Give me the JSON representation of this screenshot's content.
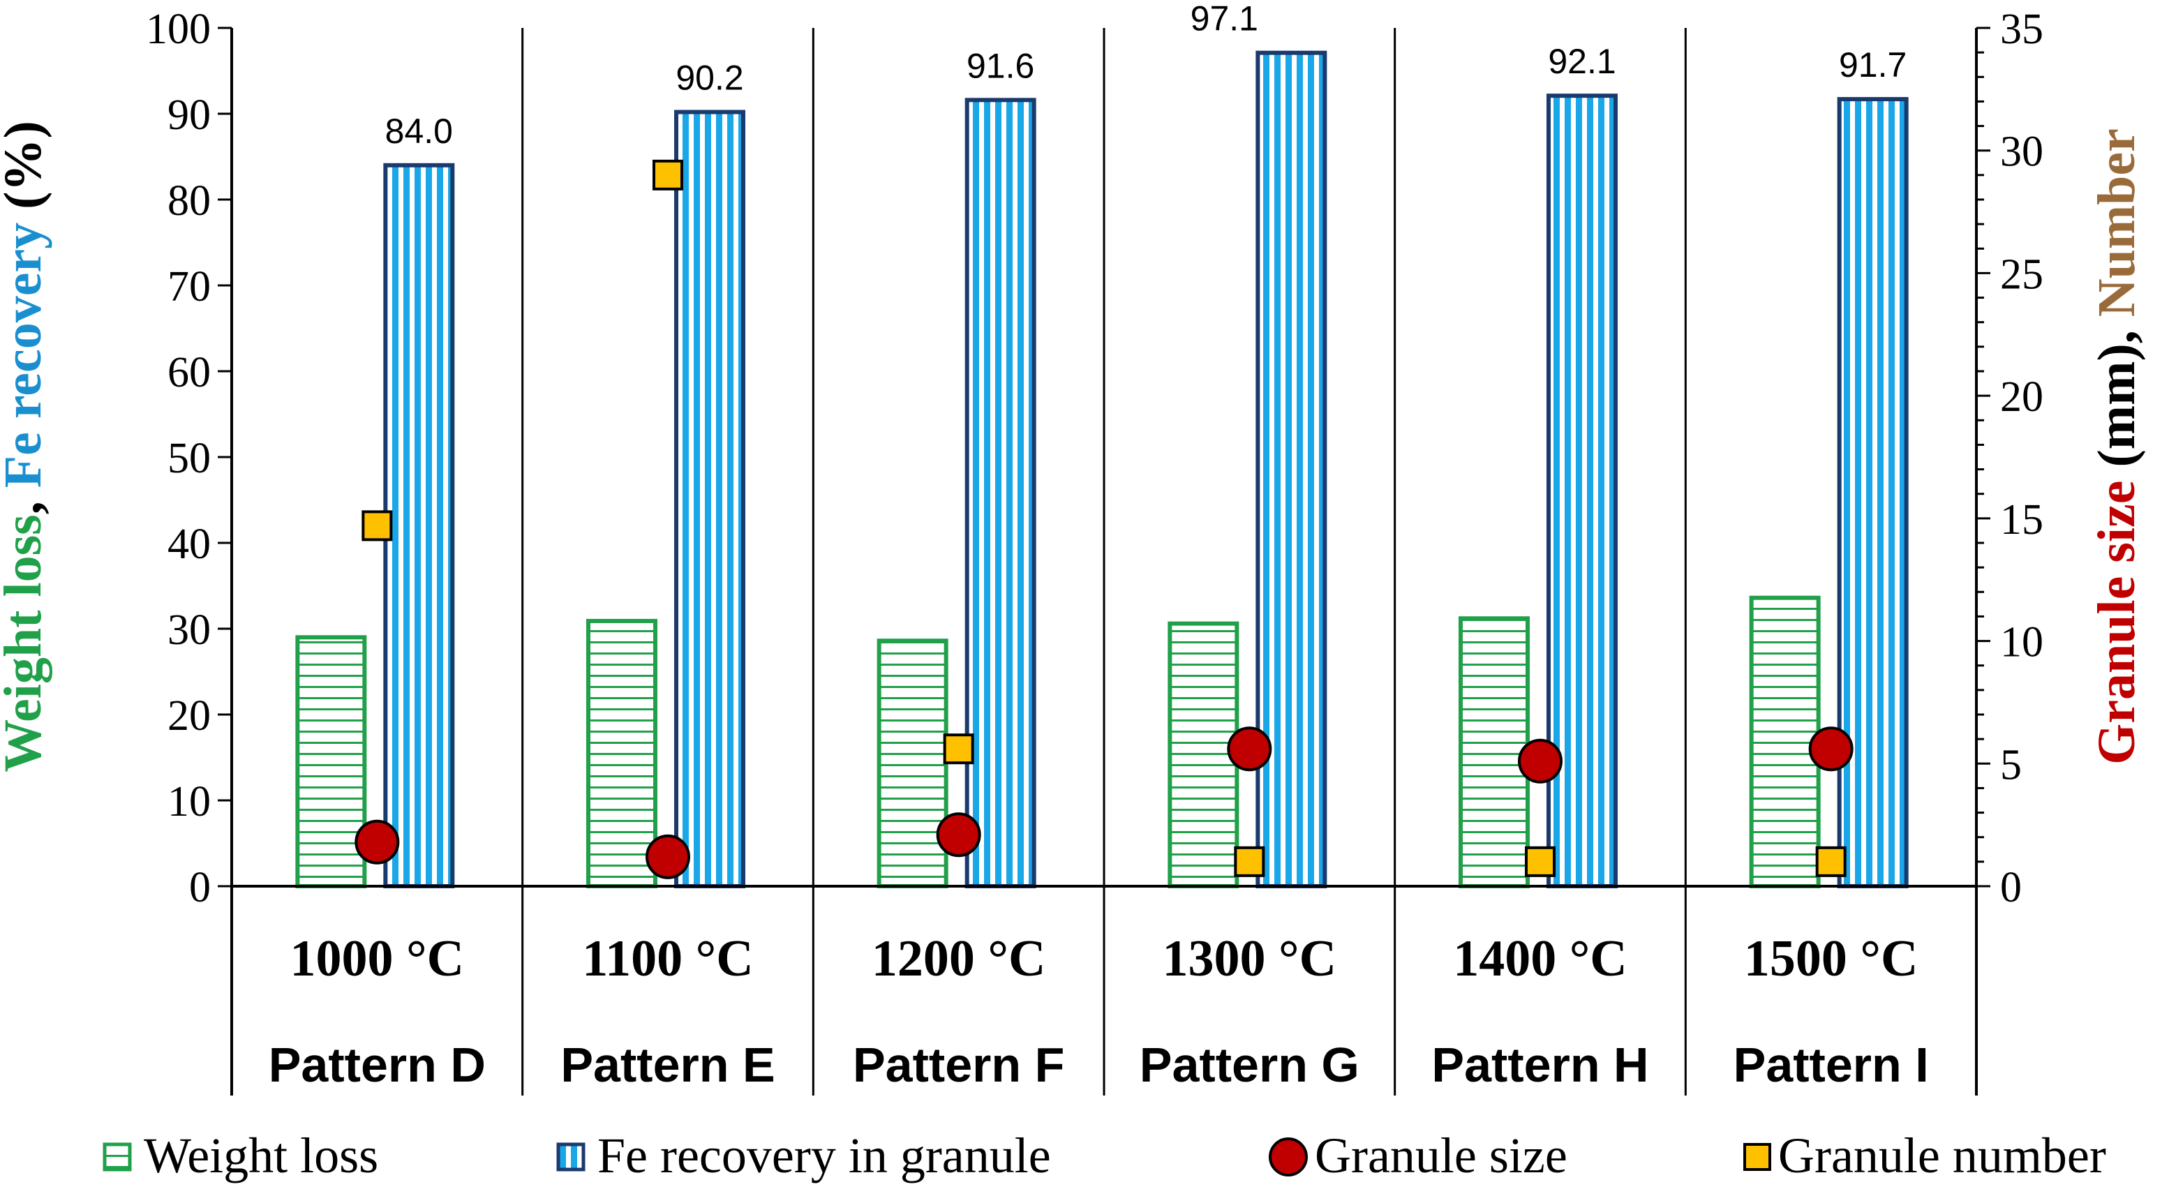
{
  "chart_data": {
    "type": "bar",
    "categories": [
      {
        "temperature": "1000 °C",
        "pattern": "Pattern D"
      },
      {
        "temperature": "1100 °C",
        "pattern": "Pattern E"
      },
      {
        "temperature": "1200 °C",
        "pattern": "Pattern F"
      },
      {
        "temperature": "1300 °C",
        "pattern": "Pattern G"
      },
      {
        "temperature": "1400 °C",
        "pattern": "Pattern H"
      },
      {
        "temperature": "1500 °C",
        "pattern": "Pattern I"
      }
    ],
    "series": [
      {
        "name": "Weight loss",
        "axis": "left",
        "kind": "bar",
        "color": "#21a04a",
        "hatch": "horizontal",
        "values": [
          29.0,
          30.9,
          28.6,
          30.6,
          31.2,
          33.6
        ]
      },
      {
        "name": "Fe recovery in granule",
        "axis": "left",
        "kind": "bar",
        "color": "#1a3a6e",
        "fill": "#19a7e8",
        "hatch": "vertical",
        "values": [
          84.0,
          90.2,
          91.6,
          97.1,
          92.1,
          91.7
        ],
        "labels": [
          "84.0",
          "90.2",
          "91.6",
          "97.1",
          "92.1",
          "91.7"
        ]
      },
      {
        "name": "Granule size",
        "axis": "right",
        "kind": "marker",
        "marker": "circle",
        "color": "#c00000",
        "values": [
          1.8,
          1.2,
          2.1,
          5.6,
          5.1,
          5.6
        ]
      },
      {
        "name": "Granule number",
        "axis": "right",
        "kind": "marker",
        "marker": "square",
        "color": "#ffc000",
        "values": [
          14.7,
          29.0,
          5.6,
          1.0,
          1.0,
          1.0
        ]
      }
    ],
    "y_left": {
      "range": [
        0,
        100
      ],
      "ticks": [
        0,
        10,
        20,
        30,
        40,
        50,
        60,
        70,
        80,
        90,
        100
      ],
      "tick_labels": [
        "0",
        "10",
        "20",
        "30",
        "40",
        "50",
        "60",
        "70",
        "80",
        "90",
        "100"
      ],
      "label_parts": [
        {
          "text": "Weight loss",
          "color": "#21a04a"
        },
        {
          "text": ", ",
          "color": "#000000"
        },
        {
          "text": "Fe recovery",
          "color": "#1a8fd0"
        },
        {
          "text": " (%)",
          "color": "#000000"
        }
      ]
    },
    "y_right": {
      "range": [
        0,
        35
      ],
      "ticks": [
        0,
        5,
        10,
        15,
        20,
        25,
        30,
        35
      ],
      "tick_labels": [
        "0",
        "5",
        "10",
        "15",
        "20",
        "25",
        "30",
        "35"
      ],
      "label_parts": [
        {
          "text": "Granule size",
          "color": "#c00000"
        },
        {
          "text": " (mm), ",
          "color": "#000000"
        },
        {
          "text": "Number",
          "color": "#9a6b3a"
        }
      ]
    },
    "legend": {
      "position": "bottom",
      "items": [
        "Weight loss",
        "Fe recovery in granule",
        "Granule size",
        "Granule number"
      ]
    }
  }
}
